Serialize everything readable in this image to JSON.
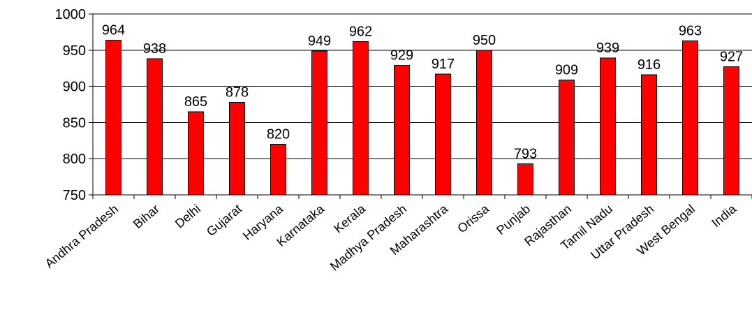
{
  "chart_data": {
    "type": "bar",
    "categories": [
      "Andhra Pradesh",
      "Bihar",
      "Delhi",
      "Gujarat",
      "Haryana",
      "Karnataka",
      "Kerala",
      "Madhya Pradesh",
      "Maharashtra",
      "Orissa",
      "Punjab",
      "Rajasthan",
      "Tamil Nadu",
      "Uttar Pradesh",
      "West Bengal",
      "India"
    ],
    "values": [
      964,
      938,
      865,
      878,
      820,
      949,
      962,
      929,
      917,
      950,
      793,
      909,
      939,
      916,
      963,
      927
    ],
    "data_labels": [
      "964",
      "938",
      "865",
      "878",
      "820",
      "949",
      "962",
      "929",
      "917",
      "950",
      "793",
      "909",
      "939",
      "916",
      "963",
      "927"
    ],
    "yticks": [
      "750",
      "800",
      "850",
      "900",
      "950",
      "1000"
    ],
    "ytick_values": [
      750,
      800,
      850,
      900,
      950,
      1000
    ],
    "ylim": [
      750,
      1000
    ],
    "title": "",
    "xlabel": "",
    "ylabel": "",
    "grid": "horizontal",
    "legend": "none",
    "colors": {
      "bar_fill": "#ff0000",
      "bar_stroke": "#000000",
      "grid": "#000000",
      "axis": "#000000",
      "background": "#ffffff"
    }
  }
}
